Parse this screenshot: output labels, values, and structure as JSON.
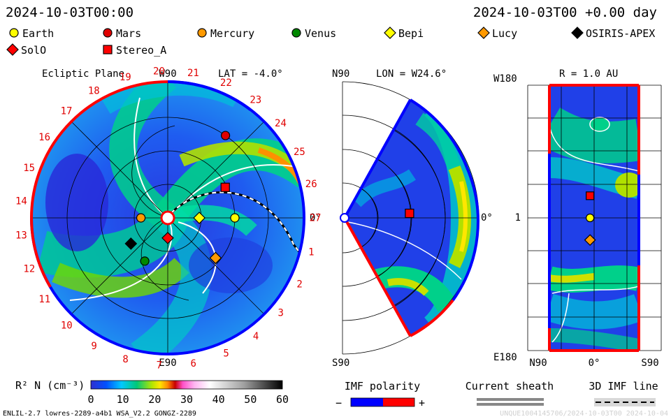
{
  "header": {
    "datetime_left": "2024-10-03T00:00",
    "datetime_right": "2024-10-03T00 +0.00 day"
  },
  "legend": {
    "items": [
      {
        "name": "Earth",
        "shape": "circle",
        "color": "#ffff00"
      },
      {
        "name": "Mars",
        "shape": "circle",
        "color": "#e00000"
      },
      {
        "name": "Mercury",
        "shape": "circle",
        "color": "#ff9900"
      },
      {
        "name": "Venus",
        "shape": "circle",
        "color": "#008800"
      },
      {
        "name": "Bepi",
        "shape": "diamond",
        "color": "#ffff00"
      },
      {
        "name": "Lucy",
        "shape": "diamond",
        "color": "#ff9900"
      },
      {
        "name": "OSIRIS-APEX",
        "shape": "diamond",
        "color": "#000000"
      },
      {
        "name": "SolO",
        "shape": "diamond",
        "color": "#ff0000"
      },
      {
        "name": "Stereo_A",
        "shape": "square",
        "color": "#ff0000"
      }
    ]
  },
  "chart_data": [
    {
      "type": "heatmap",
      "panel": "ecliptic",
      "title": "Ecliptic Plane",
      "lat_label": "LAT = -4.0°",
      "top_label": "W90",
      "bottom_label": "E90",
      "right_label": "0°",
      "carrington_ticks": [
        "1",
        "2",
        "3",
        "4",
        "5",
        "6",
        "7",
        "8",
        "9",
        "10",
        "11",
        "12",
        "13",
        "14",
        "15",
        "16",
        "17",
        "18",
        "19",
        "20",
        "21",
        "22",
        "23",
        "24",
        "25",
        "26",
        "27"
      ],
      "bodies": [
        {
          "name": "Earth",
          "r_au": 1.0,
          "angle_deg": 0
        },
        {
          "name": "Mars",
          "r_au": 1.5,
          "angle_deg": 55
        },
        {
          "name": "Mercury",
          "r_au": 0.4,
          "angle_deg": 180
        },
        {
          "name": "Venus",
          "r_au": 0.73,
          "angle_deg": 242
        },
        {
          "name": "Bepi",
          "r_au": 0.47,
          "angle_deg": 0
        },
        {
          "name": "Lucy",
          "r_au": 0.93,
          "angle_deg": 320
        },
        {
          "name": "OSIRIS-APEX",
          "r_au": 0.67,
          "angle_deg": 215
        },
        {
          "name": "SolO",
          "r_au": 0.3,
          "angle_deg": 270
        },
        {
          "name": "Stereo_A",
          "r_au": 0.97,
          "angle_deg": 28
        }
      ]
    },
    {
      "type": "heatmap",
      "panel": "meridional",
      "title": "LON = W24.6°",
      "top_label": "N90",
      "bottom_label": "S90",
      "right_label": "0°",
      "bodies": [
        {
          "name": "Stereo_A",
          "r_au": 0.97,
          "lat_deg": 4
        }
      ]
    },
    {
      "type": "heatmap",
      "panel": "lon-lat",
      "title": "R = 1.0 AU",
      "top_label": "W180",
      "bottom_label": "E180",
      "mid_label": "1",
      "x_labels": [
        "N90",
        "0°",
        "S90"
      ],
      "bodies": [
        {
          "name": "Stereo_A",
          "lat_deg": 4,
          "lon_deg": 30
        },
        {
          "name": "Earth",
          "lat_deg": 4,
          "lon_deg": 0
        },
        {
          "name": "Lucy",
          "lat_deg": 4,
          "lon_deg": -30
        }
      ]
    }
  ],
  "colorbar": {
    "label": "R² N (cm⁻³)",
    "ticks": [
      "0",
      "10",
      "20",
      "30",
      "40",
      "50",
      "60"
    ]
  },
  "imf_polarity": {
    "title": "IMF polarity",
    "minus": "−",
    "plus": "+",
    "neg_color": "#0000ff",
    "pos_color": "#ff0000"
  },
  "current_sheath": {
    "title": "Current sheath"
  },
  "imf_line": {
    "title": "3D IMF line"
  },
  "footer": {
    "left": "ENLIL-2.7 lowres-2289-a4b1 WSA_V2.2 GONGZ-2289",
    "right": "UNQUE1004145706/2024-10-03T00   2024-10-04"
  }
}
